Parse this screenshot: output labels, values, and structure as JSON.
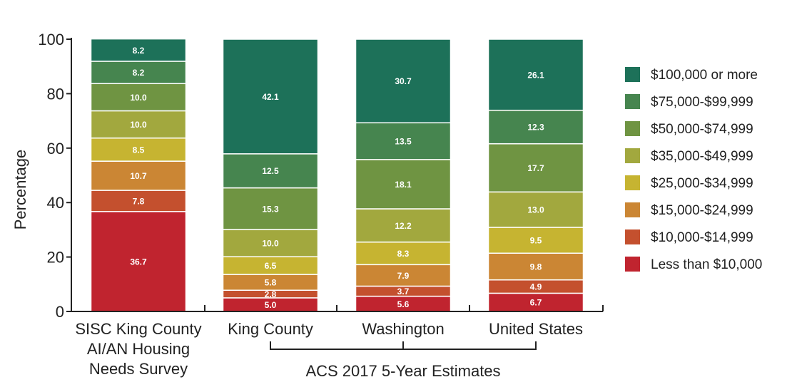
{
  "chart_data": {
    "type": "bar",
    "stacked": true,
    "ylabel": "Percentage",
    "xlabel": "",
    "ylim": [
      0,
      100
    ],
    "yticks": [
      0,
      20,
      40,
      60,
      80,
      100
    ],
    "grid": false,
    "legend_position": "right",
    "categories": [
      [
        "SISC King County",
        "AI/AN Housing",
        "Needs Survey"
      ],
      [
        "King County"
      ],
      [
        "Washington"
      ],
      [
        "United States"
      ]
    ],
    "group_annotation": {
      "label": "ACS 2017 5-Year Estimates",
      "categories": [
        "King County",
        "Washington",
        "United States"
      ]
    },
    "series": [
      {
        "name": "Less than $10,000",
        "color": "#c0242f",
        "values": [
          36.7,
          5.0,
          5.6,
          6.7
        ]
      },
      {
        "name": "$10,000-$14,999",
        "color": "#c4502e",
        "values": [
          7.8,
          2.8,
          3.7,
          4.9
        ]
      },
      {
        "name": "$15,000-$24,999",
        "color": "#cb8634",
        "values": [
          10.7,
          5.8,
          7.9,
          9.8
        ]
      },
      {
        "name": "$25,000-$34,999",
        "color": "#c6b431",
        "values": [
          8.5,
          6.5,
          8.3,
          9.5
        ]
      },
      {
        "name": "$35,000-$49,999",
        "color": "#a2a83e",
        "values": [
          10.0,
          10.0,
          12.2,
          13.0
        ]
      },
      {
        "name": "$50,000-$74,999",
        "color": "#6f9442",
        "values": [
          10.0,
          15.3,
          18.1,
          17.7
        ]
      },
      {
        "name": "$75,000-$99,999",
        "color": "#46854f",
        "values": [
          8.2,
          12.5,
          13.5,
          12.3
        ]
      },
      {
        "name": "$100,000 or more",
        "color": "#1d7159",
        "values": [
          8.2,
          42.1,
          30.7,
          26.1
        ]
      }
    ]
  }
}
